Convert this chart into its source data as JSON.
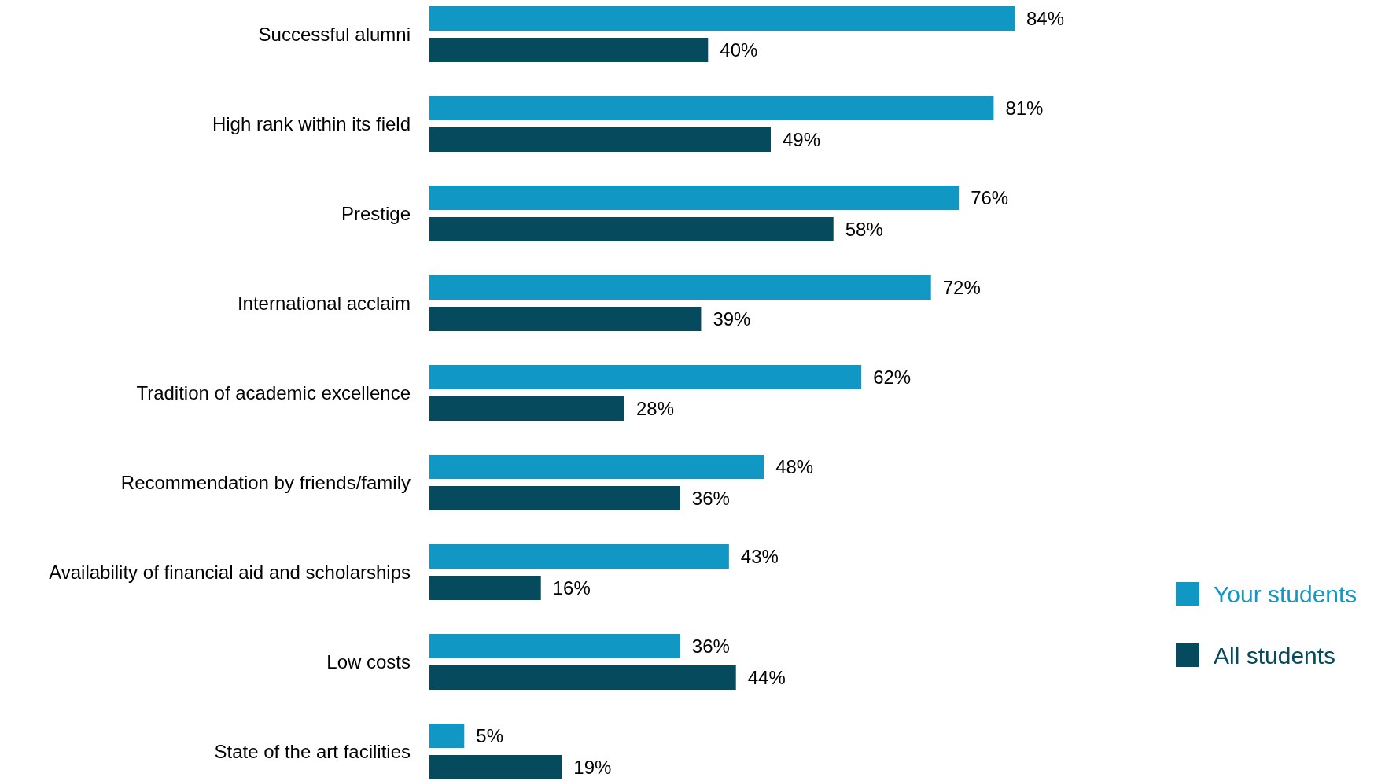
{
  "chart_data": {
    "type": "bar",
    "orientation": "horizontal",
    "categories": [
      "Successful alumni",
      "High rank within its field",
      "Prestige",
      "International acclaim",
      "Tradition of academic excellence",
      "Recommendation by friends/family",
      "Availability of financial aid and scholarships",
      "Low costs",
      "State of the art facilities"
    ],
    "series": [
      {
        "name": "Your students",
        "color": "#1097c4",
        "values": [
          84,
          81,
          76,
          72,
          62,
          48,
          43,
          36,
          5
        ],
        "value_labels": [
          "84%",
          "81%",
          "76%",
          "72%",
          "62%",
          "48%",
          "43%",
          "36%",
          "5%"
        ]
      },
      {
        "name": "All students",
        "color": "#064a5e",
        "values": [
          40,
          49,
          58,
          39,
          28,
          36,
          16,
          44,
          19
        ],
        "value_labels": [
          "40%",
          "49%",
          "58%",
          "39%",
          "28%",
          "36%",
          "16%",
          "44%",
          "19%"
        ]
      }
    ],
    "legend": "right"
  }
}
